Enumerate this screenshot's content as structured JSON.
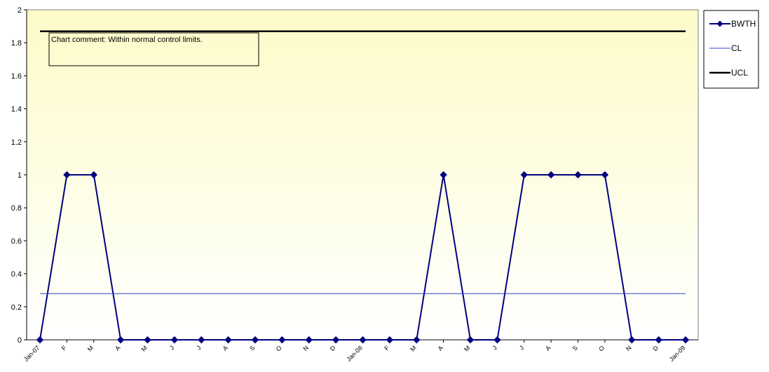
{
  "chart_data": {
    "type": "line",
    "categories": [
      "Jan-07",
      "F",
      "M",
      "A",
      "M",
      "J",
      "J",
      "A",
      "S",
      "O",
      "N",
      "D",
      "Jan-08",
      "F",
      "M",
      "A",
      "M",
      "J",
      "J",
      "A",
      "S",
      "O",
      "N",
      "D",
      "Jan-09"
    ],
    "series": [
      {
        "name": "BWTH",
        "values": [
          0,
          1,
          1,
          0,
          0,
          0,
          0,
          0,
          0,
          0,
          0,
          0,
          0,
          0,
          0,
          1,
          0,
          0,
          1,
          1,
          1,
          1,
          0,
          0,
          0
        ],
        "color": "#000080",
        "marker": "diamond"
      },
      {
        "name": "CL",
        "values": [
          0.28,
          0.28,
          0.28,
          0.28,
          0.28,
          0.28,
          0.28,
          0.28,
          0.28,
          0.28,
          0.28,
          0.28,
          0.28,
          0.28,
          0.28,
          0.28,
          0.28,
          0.28,
          0.28,
          0.28,
          0.28,
          0.28,
          0.28,
          0.28,
          0.28
        ],
        "color": "#2a3fcf"
      },
      {
        "name": "UCL",
        "values": [
          1.87,
          1.87,
          1.87,
          1.87,
          1.87,
          1.87,
          1.87,
          1.87,
          1.87,
          1.87,
          1.87,
          1.87,
          1.87,
          1.87,
          1.87,
          1.87,
          1.87,
          1.87,
          1.87,
          1.87,
          1.87,
          1.87,
          1.87,
          1.87,
          1.87
        ],
        "color": "#000000"
      }
    ],
    "ylim": [
      0,
      2
    ],
    "yticks": [
      "0",
      "0.2",
      "0.4",
      "0.6",
      "0.8",
      "1",
      "1.2",
      "1.4",
      "1.6",
      "1.8",
      "2"
    ],
    "title": "",
    "xlabel": "",
    "ylabel": "",
    "grid": false,
    "legend_position": "right",
    "annotation": "Chart comment:  Within normal control limits.",
    "background": {
      "top": "#fdfbc8",
      "bottom": "#ffffff"
    }
  }
}
